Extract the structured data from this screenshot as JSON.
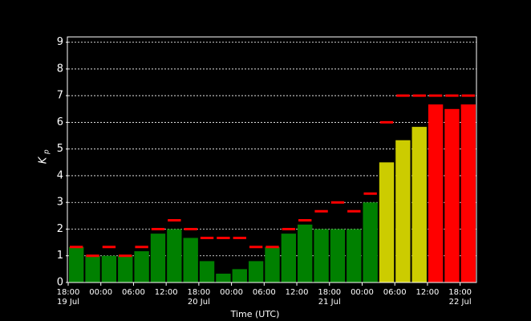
{
  "chart_data": {
    "type": "bar",
    "xlabel": "Time (UTC)",
    "ylabel": "K",
    "ylabel_sub": "p",
    "xlim": [
      0,
      75
    ],
    "xticks": [
      {
        "value": 0,
        "label": "18:00",
        "date": "19 Jul"
      },
      {
        "value": 6,
        "label": "00:00"
      },
      {
        "value": 12,
        "label": "06:00"
      },
      {
        "value": 18,
        "label": "12:00"
      },
      {
        "value": 24,
        "label": "18:00",
        "date": "20 Jul"
      },
      {
        "value": 30,
        "label": "00:00"
      },
      {
        "value": 36,
        "label": "06:00"
      },
      {
        "value": 42,
        "label": "12:00"
      },
      {
        "value": 48,
        "label": "18:00",
        "date": "21 Jul"
      },
      {
        "value": 54,
        "label": "00:00"
      },
      {
        "value": 60,
        "label": "06:00"
      },
      {
        "value": 66,
        "label": "12:00"
      },
      {
        "value": 72,
        "label": "18:00",
        "date": "22 Jul"
      }
    ],
    "bar_hours": 3,
    "ylim": [
      0,
      9.2
    ],
    "yticks": [
      0,
      1,
      2,
      3,
      4,
      5,
      6,
      7,
      8,
      9
    ],
    "grid": true,
    "values": [
      1.33,
      1.0,
      1.0,
      1.0,
      1.17,
      1.83,
      2.0,
      1.67,
      0.8,
      0.33,
      0.5,
      0.8,
      1.33,
      1.83,
      2.17,
      2.0,
      2.0,
      2.0,
      3.0,
      4.5,
      5.33,
      5.83,
      6.67,
      6.5,
      6.67
    ],
    "colors": [
      "#008000",
      "#008000",
      "#008000",
      "#008000",
      "#008000",
      "#008000",
      "#008000",
      "#008000",
      "#008000",
      "#008000",
      "#008000",
      "#008000",
      "#008000",
      "#008000",
      "#008000",
      "#008000",
      "#008000",
      "#008000",
      "#008000",
      "#cccc00",
      "#cccc00",
      "#cccc00",
      "#ff0000",
      "#ff0000",
      "#ff0000"
    ],
    "predicted_values": [
      1.33,
      1.0,
      1.33,
      1.0,
      1.33,
      2.0,
      2.33,
      2.0,
      1.67,
      1.67,
      1.67,
      1.33,
      1.33,
      2.0,
      2.33,
      2.67,
      3.0,
      2.67,
      3.33,
      6.0,
      7.0,
      7.0,
      7.0,
      7.0,
      7.0
    ],
    "predicted_color": "#ff0000"
  }
}
